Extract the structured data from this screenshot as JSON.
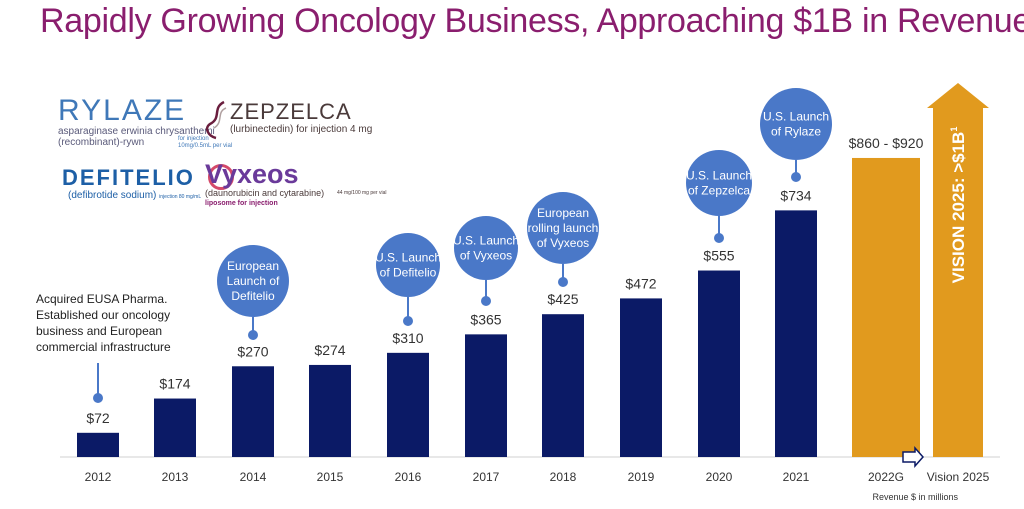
{
  "title": "Rapidly Growing Oncology Business, Approaching $1B in Revenue",
  "footnote": "Revenue $ in millions",
  "logos": {
    "rylaze": {
      "name": "RYLAZE",
      "sub1": "asparaginase erwinia chrysanthemi",
      "sub2": "(recombinant)-rywn",
      "note1": "for injection",
      "note2": "10mg/0.5mL per vial"
    },
    "zepzelca": {
      "name": "ZEPZELCA",
      "sub": "(lurbinectedin) for injection 4 mg"
    },
    "defitelio": {
      "name": "DEFITELIO",
      "sub": "(defibrotide sodium)",
      "note": "injection 80 mg/mL"
    },
    "vyxeos": {
      "name": "Vyxeos",
      "sub": "(daunorubicin and cytarabine)",
      "note": "44 mg/100 mg per vial",
      "sub2": "liposome for injection"
    }
  },
  "chart_data": {
    "type": "bar",
    "categories": [
      "2012",
      "2013",
      "2014",
      "2015",
      "2016",
      "2017",
      "2018",
      "2019",
      "2020",
      "2021",
      "2022G",
      "Vision 2025"
    ],
    "values": [
      72,
      174,
      270,
      274,
      310,
      365,
      425,
      472,
      555,
      734,
      890,
      null
    ],
    "value_labels": [
      "$72",
      "$174",
      "$270",
      "$274",
      "$310",
      "$365",
      "$425",
      "$472",
      "$555",
      "$734",
      "$860 - $920",
      ""
    ],
    "guidance_range": [
      860,
      920
    ],
    "vision_label": "VISION 2025: >$1B",
    "vision_sup": "1",
    "ylim": [
      0,
      1000
    ],
    "xlabel": "",
    "ylabel": "",
    "colors": {
      "actual": "#0b1a66",
      "guidance": "#e19a1e",
      "bubble": "#4a78c8",
      "title": "#8a1e6e"
    },
    "annotations": [
      {
        "year": "2012",
        "lines": [
          "Acquired EUSA Pharma.",
          "Established our oncology",
          "business and European",
          "commercial infrastructure"
        ],
        "style": "text"
      },
      {
        "year": "2014",
        "lines": [
          "European",
          "Launch of",
          "Defitelio"
        ],
        "style": "bubble"
      },
      {
        "year": "2016",
        "lines": [
          "U.S. Launch",
          "of Defitelio"
        ],
        "style": "bubble"
      },
      {
        "year": "2017",
        "lines": [
          "U.S. Launch",
          "of Vyxeos"
        ],
        "style": "bubble"
      },
      {
        "year": "2018",
        "lines": [
          "European",
          "rolling launch",
          "of Vyxeos"
        ],
        "style": "bubble"
      },
      {
        "year": "2020",
        "lines": [
          "U.S. Launch",
          "of Zepzelca"
        ],
        "style": "bubble"
      },
      {
        "year": "2021",
        "lines": [
          "U.S. Launch",
          "of Rylaze"
        ],
        "style": "bubble"
      }
    ]
  }
}
